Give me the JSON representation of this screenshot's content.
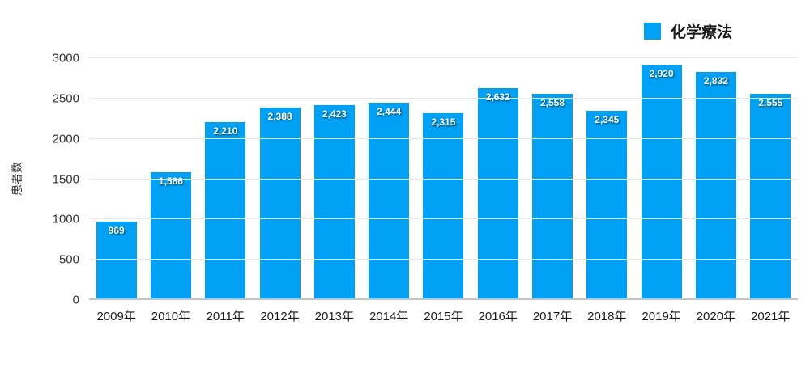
{
  "chart_data": {
    "type": "bar",
    "title": "",
    "categories": [
      "2009年",
      "2010年",
      "2011年",
      "2012年",
      "2013年",
      "2014年",
      "2015年",
      "2016年",
      "2017年",
      "2018年",
      "2019年",
      "2020年",
      "2021年"
    ],
    "values": [
      969,
      1586,
      2210,
      2388,
      2423,
      2444,
      2315,
      2632,
      2558,
      2345,
      2920,
      2832,
      2555
    ],
    "value_labels": [
      "969",
      "1,586",
      "2,210",
      "2,388",
      "2,423",
      "2,444",
      "2,315",
      "2,632",
      "2,558",
      "2,345",
      "2,920",
      "2,832",
      "2,555"
    ],
    "series_name": "化学療法",
    "xlabel": "",
    "ylabel": "患者数",
    "ylim": [
      0,
      3000
    ],
    "yticks": [
      0,
      500,
      1000,
      1500,
      2000,
      2500,
      3000
    ],
    "grid": "horizontal",
    "legend_position": "top-right",
    "bar_color": "#00A1F5",
    "gridline_color": "#e7e7e7",
    "baseline_color": "#c4c4c4",
    "bar_label_color": "#ffffff"
  }
}
